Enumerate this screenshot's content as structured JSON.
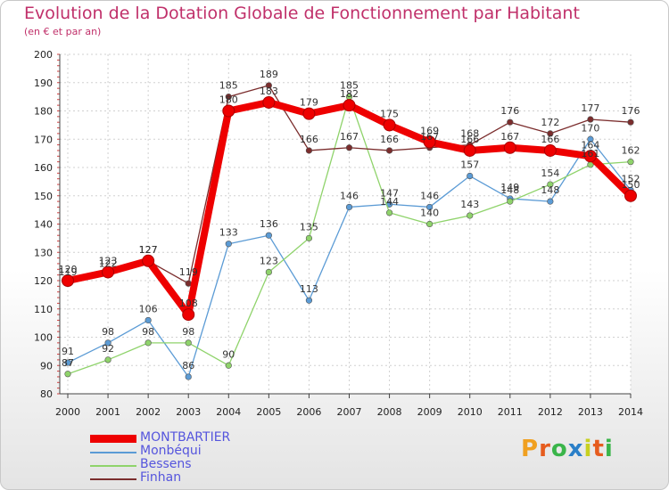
{
  "title": "Evolution de la Dotation Globale de Fonctionnement par Habitant",
  "subtitle": "(en € et par an)",
  "logo": [
    "P",
    "r",
    "o",
    "x",
    "i",
    "t",
    "i"
  ],
  "logo_colors": [
    "#f0a020",
    "#e65c1e",
    "#3ab54a",
    "#2a7fc8",
    "#c8d020",
    "#e65c1e",
    "#3ab54a"
  ],
  "chart_data": {
    "type": "line",
    "title": "Evolution de la Dotation Globale de Fonctionnement par Habitant",
    "subtitle": "(en € et par an)",
    "x": [
      "2000",
      "2001",
      "2002",
      "2003",
      "2004",
      "2005",
      "2006",
      "2007",
      "2008",
      "2009",
      "2010",
      "2011",
      "2012",
      "2013",
      "2014"
    ],
    "ylim": [
      80,
      200
    ],
    "yticks": [
      80,
      90,
      100,
      110,
      120,
      130,
      140,
      150,
      160,
      170,
      180,
      190,
      200
    ],
    "grid": true,
    "legend_position": "bottom-left",
    "series": [
      {
        "name": "MONTBARTIER",
        "color": "#ee0000",
        "values": [
          120,
          123,
          127,
          108,
          180,
          183,
          179,
          182,
          175,
          169,
          166,
          167,
          166,
          164,
          150
        ]
      },
      {
        "name": "Monbéqui",
        "color": "#5b9bd5",
        "values": [
          91,
          98,
          106,
          86,
          133,
          136,
          113,
          146,
          147,
          146,
          157,
          149,
          148,
          170,
          152
        ]
      },
      {
        "name": "Bessens",
        "color": "#8fd36b",
        "values": [
          87,
          92,
          98,
          98,
          90,
          123,
          135,
          185,
          144,
          140,
          143,
          148,
          154,
          161,
          162
        ]
      },
      {
        "name": "Finhan",
        "color": "#7b2d2d",
        "values": [
          119,
          122,
          127,
          119,
          185,
          189,
          166,
          167,
          166,
          167,
          168,
          176,
          172,
          177,
          176
        ]
      }
    ]
  }
}
